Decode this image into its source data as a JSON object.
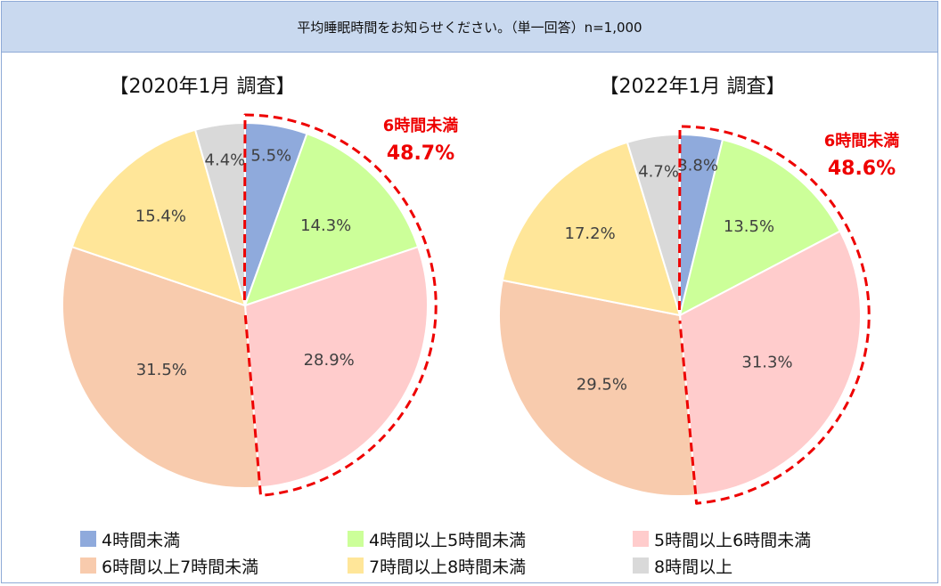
{
  "header": {
    "question": "平均睡眠時間をお知らせください。（単一回答）n=1,000"
  },
  "chart_data": [
    {
      "type": "pie",
      "title": "【2020年1月 調査】",
      "categories": [
        "4時間未満",
        "4時間以上5時間未満",
        "5時間以上6時間未満",
        "6時間以上7時間未満",
        "7時間以上8時間未満",
        "8時間以上"
      ],
      "values": [
        5.5,
        14.3,
        28.9,
        31.5,
        15.4,
        4.4
      ],
      "labels": [
        "5.5%",
        "14.3%",
        "28.9%",
        "31.5%",
        "15.4%",
        "4.4%"
      ],
      "start": "12 o'clock, clockwise",
      "callout": {
        "label": "6時間未満",
        "value_text": "48.7%",
        "value": 48.7,
        "segments": [
          0,
          1,
          2
        ]
      }
    },
    {
      "type": "pie",
      "title": "【2022年1月 調査】",
      "categories": [
        "4時間未満",
        "4時間以上5時間未満",
        "5時間以上6時間未満",
        "6時間以上7時間未満",
        "7時間以上8時間未満",
        "8時間以上"
      ],
      "values": [
        3.8,
        13.5,
        31.3,
        29.5,
        17.2,
        4.7
      ],
      "labels": [
        "3.8%",
        "13.5%",
        "31.3%",
        "29.5%",
        "17.2%",
        "4.7%"
      ],
      "start": "12 o'clock, clockwise",
      "callout": {
        "label": "6時間未満",
        "value_text": "48.6%",
        "value": 48.6,
        "segments": [
          0,
          1,
          2
        ]
      }
    }
  ],
  "legend": {
    "items": [
      {
        "label": "4時間未満",
        "color": "#8faadc"
      },
      {
        "label": "4時間以上5時間未満",
        "color": "#ccff99"
      },
      {
        "label": "5時間以上6時間未満",
        "color": "#ffcccc"
      },
      {
        "label": "6時間以上7時間未満",
        "color": "#f8cbad"
      },
      {
        "label": "7時間以上8時間未満",
        "color": "#ffe699"
      },
      {
        "label": "8時間以上",
        "color": "#d9d9d9"
      }
    ]
  },
  "colors": {
    "callout": "#ee0000",
    "header_bg": "#c9d9ef",
    "frame_border": "#8eaad6"
  }
}
